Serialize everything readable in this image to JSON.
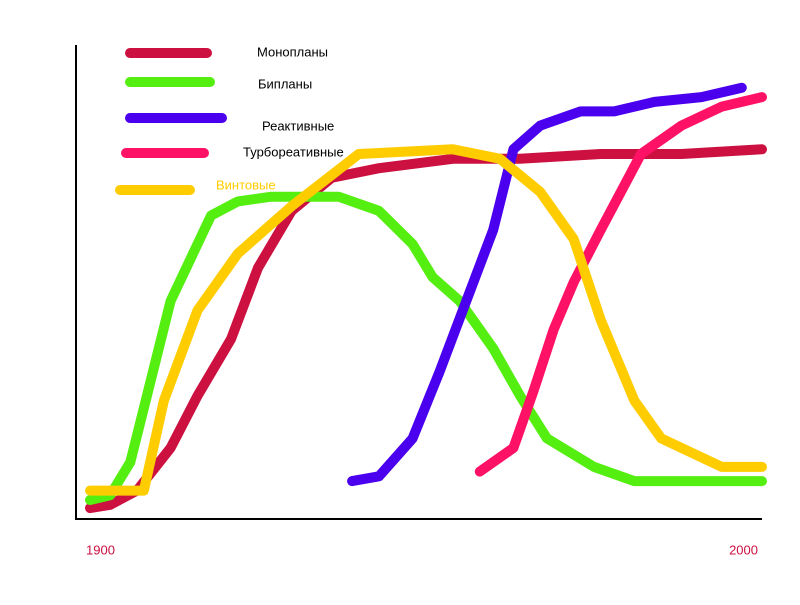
{
  "chart_data": {
    "type": "line",
    "xlim": [
      1900,
      2000
    ],
    "xticks": [
      1900,
      2000
    ],
    "ylim": [
      0,
      100
    ],
    "series": [
      {
        "name": "Монопланы",
        "color": "#cc1040",
        "x": [
          1900,
          1903,
          1907,
          1912,
          1916,
          1921,
          1925,
          1930,
          1936,
          1943,
          1954,
          1964,
          1976,
          1988,
          2000
        ],
        "values": [
          2.3,
          3,
          6,
          15,
          26,
          38,
          53,
          65,
          72,
          74,
          76,
          76,
          77,
          77,
          78
        ]
      },
      {
        "name": "Бипланы",
        "color": "#55ee11",
        "x": [
          1900,
          1903,
          1906,
          1909,
          1912,
          1915,
          1918,
          1922,
          1927,
          1937,
          1943,
          1948,
          1951,
          1955,
          1960,
          1964,
          1968,
          1975,
          1981,
          1991,
          2000
        ],
        "values": [
          4,
          5,
          12,
          29,
          46,
          55,
          64,
          67,
          68,
          68,
          65,
          58,
          51,
          46,
          36,
          26,
          17,
          11,
          8,
          8,
          8
        ]
      },
      {
        "name": "Реактивные",
        "color": "#4a00ee",
        "x": [
          1939,
          1943,
          1948,
          1952,
          1956,
          1960,
          1963,
          1967,
          1973,
          1978,
          1984,
          1991,
          1997
        ],
        "values": [
          8,
          9,
          17,
          31,
          46,
          61,
          78,
          83,
          86,
          86,
          88,
          89,
          91
        ]
      },
      {
        "name": "Турбореативные",
        "color": "#ff1166",
        "x": [
          1958,
          1963,
          1966,
          1969,
          1972,
          1976,
          1979,
          1982,
          1988,
          1994,
          2000
        ],
        "values": [
          10,
          15,
          27,
          40,
          50,
          61,
          69,
          77,
          83,
          87,
          89
        ]
      },
      {
        "name": "Винтовые",
        "color": "#ffcc00",
        "x": [
          1900,
          1908,
          1911,
          1916,
          1922,
          1930,
          1940,
          1954,
          1961,
          1967,
          1972,
          1976,
          1981,
          1985,
          1994,
          2000
        ],
        "values": [
          6,
          6,
          25,
          44,
          56,
          66,
          77,
          78,
          76,
          69,
          59,
          42,
          25,
          17,
          11,
          11
        ]
      }
    ]
  }
}
